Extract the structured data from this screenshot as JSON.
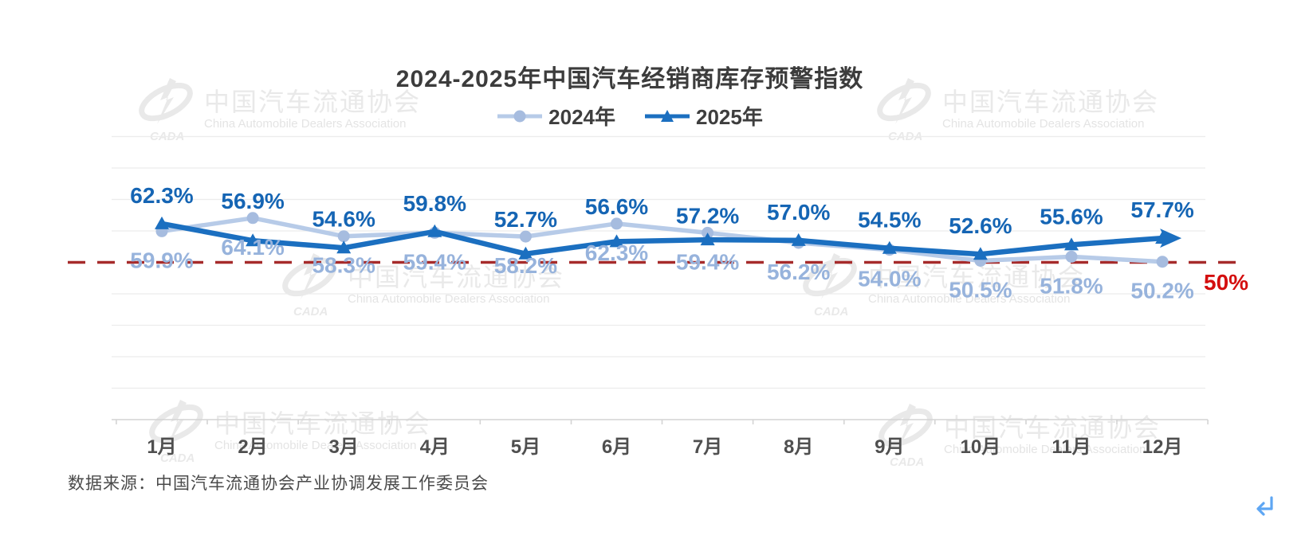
{
  "title": "2024-2025年中国汽车经销商库存预警指数",
  "source_note": "数据来源：中国汽车流通协会产业协调发展工作委员会",
  "watermark": {
    "logo_text": "CADA",
    "cn": "中国汽车流通协会",
    "en": "China Automobile Dealers Association"
  },
  "reference_line": {
    "value": 50,
    "label": "50%"
  },
  "icons": {
    "return_icon": "↵"
  },
  "colors": {
    "title_text": "#3c3c3c",
    "legend_text": "#3e3e3e",
    "series_2024_line": "#b7cbe8",
    "series_2024_marker": "#a6bcdf",
    "series_2024_label": "#97b3dc",
    "series_2025_line": "#1b6fc0",
    "series_2025_label": "#1565b4",
    "ref_line": "#a62b2b",
    "ref_label": "#d40e0e",
    "grid": "#ececec",
    "axis": "#d4d4d4",
    "month_label": "#4f4f4f",
    "source_text": "#4a4a4a",
    "watermark": "#e9e9e9",
    "return_icon": "#5ea6f3"
  },
  "chart_data": {
    "type": "line",
    "title": "2024-2025年中国汽车经销商库存预警指数",
    "categories": [
      "1月",
      "2月",
      "3月",
      "4月",
      "5月",
      "6月",
      "7月",
      "8月",
      "9月",
      "10月",
      "11月",
      "12月"
    ],
    "series": [
      {
        "name": "2024年",
        "marker": "circle",
        "values": [
          59.9,
          64.1,
          58.3,
          59.4,
          58.2,
          62.3,
          59.4,
          56.2,
          54.0,
          50.5,
          51.8,
          50.2
        ]
      },
      {
        "name": "2025年",
        "marker": "triangle",
        "values": [
          62.3,
          56.9,
          54.6,
          59.8,
          52.7,
          56.6,
          57.2,
          57.0,
          54.5,
          52.6,
          55.6,
          57.7
        ]
      }
    ],
    "unit": "%",
    "ylim": [
      0,
      90
    ],
    "gridlines": [
      10,
      20,
      30,
      40,
      60,
      70,
      80,
      90
    ],
    "grid": "horizontal",
    "legend_position": "top",
    "reference_line": {
      "value": 50,
      "label": "50%"
    }
  }
}
